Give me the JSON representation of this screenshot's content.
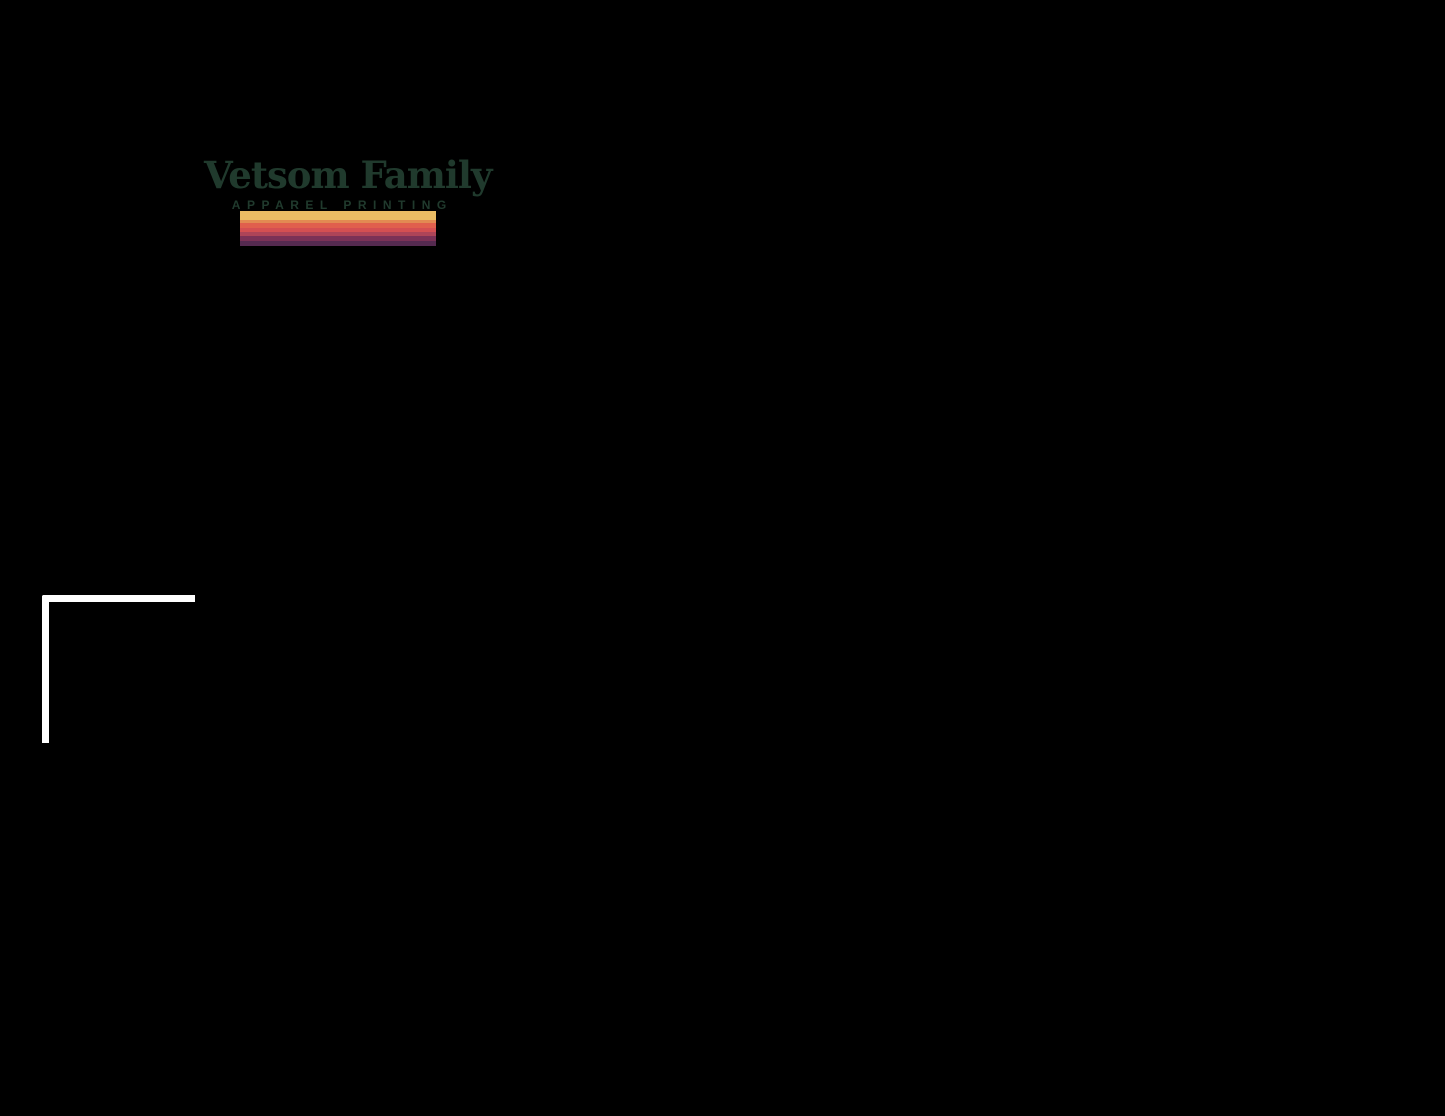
{
  "window": {
    "background": "#000000"
  },
  "logo": {
    "title": "Vetsom Family",
    "subtitle": "APPAREL PRINTING",
    "text_color": "#203a2d",
    "stripes": [
      {
        "name": "gold",
        "color": "#eabc64",
        "height": 9
      },
      {
        "name": "orange",
        "color": "#e28a52",
        "height": 3
      },
      {
        "name": "salmon",
        "color": "#e05f4d",
        "height": 5
      },
      {
        "name": "red",
        "color": "#d44f52",
        "height": 4
      },
      {
        "name": "crimson",
        "color": "#ae4458",
        "height": 4
      },
      {
        "name": "plum",
        "color": "#7b3156",
        "height": 5
      },
      {
        "name": "dark-purple",
        "color": "#552a50",
        "height": 5
      }
    ]
  },
  "overlay": {
    "corner_bracket_color": "#ffffff"
  }
}
